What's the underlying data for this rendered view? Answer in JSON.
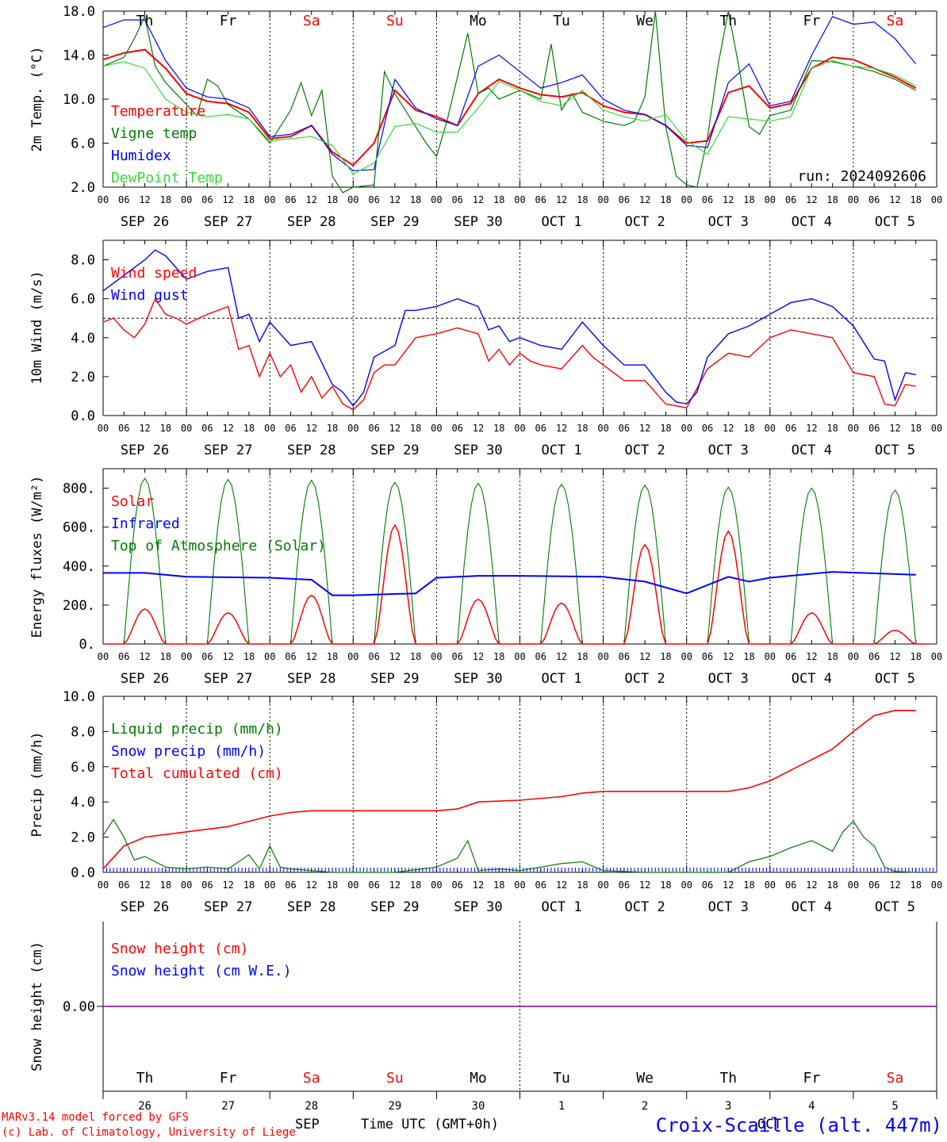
{
  "footer": {
    "credit1": "MARv3.14 model forced by GFS",
    "credit2": "(c) Lab. of Climatology, University of Liege",
    "month_label": "SEP",
    "month_label2": "OCT",
    "time_axis_label": "Time UTC (GMT+0h)",
    "site": "Croix-Scaille (alt. 447m)"
  },
  "colors": {
    "red": "#ff0000",
    "green": "#007a00",
    "blue": "#0000ff",
    "light_green": "#33dd33",
    "purple": "#800080",
    "weekend_red": "#ff0000"
  },
  "time_axis": {
    "hour_ticks": [
      "00",
      "06",
      "12",
      "18"
    ],
    "date_labels": [
      "SEP 26",
      "SEP 27",
      "SEP 28",
      "SEP 29",
      "SEP 30",
      "OCT 1",
      "OCT 2",
      "OCT 3",
      "OCT 4",
      "OCT 5"
    ],
    "day_abbr": [
      "Th",
      "Fr",
      "Sa",
      "Su",
      "Mo",
      "Tu",
      "We",
      "Th",
      "Fr",
      "Sa"
    ],
    "day_numbers": [
      "26",
      "27",
      "28",
      "29",
      "30",
      "1",
      "2",
      "3",
      "4",
      "5"
    ],
    "weekend_index": [
      2,
      3,
      9
    ]
  },
  "chart_data": [
    {
      "type": "line",
      "ylabel": "2m Temp. (°C)",
      "ylim": [
        2.0,
        18.0
      ],
      "yticks": [
        "2.0",
        "6.0",
        "10.0",
        "14.0",
        "18.0"
      ],
      "annotation": "run: 2024092606",
      "x_unit": "hours since 2024-09-26 00 UTC",
      "series": [
        {
          "name": "Temperature",
          "color": "#ff0000",
          "x": [
            0,
            6,
            12,
            18,
            24,
            30,
            36,
            42,
            48,
            54,
            60,
            66,
            72,
            78,
            84,
            90,
            96,
            102,
            108,
            114,
            120,
            126,
            132,
            138,
            144,
            150,
            156,
            162,
            168,
            174,
            180,
            186,
            192,
            198,
            204,
            210,
            216,
            222,
            228,
            234
          ],
          "values": [
            13.6,
            14.2,
            14.5,
            12.8,
            10.5,
            9.8,
            9.6,
            8.8,
            6.4,
            6.6,
            7.6,
            5.2,
            4.0,
            6.0,
            10.8,
            9.0,
            8.4,
            7.6,
            10.5,
            11.8,
            11.0,
            10.4,
            10.2,
            10.6,
            9.4,
            8.8,
            8.6,
            7.6,
            6.0,
            6.2,
            10.6,
            11.2,
            9.2,
            9.6,
            12.8,
            13.8,
            13.6,
            12.8,
            12.0,
            11.0
          ]
        },
        {
          "name": "Vigne temp",
          "color": "#007a00",
          "x": [
            0,
            6,
            9,
            12,
            15,
            18,
            24,
            27,
            30,
            33,
            36,
            42,
            48,
            54,
            57,
            60,
            63,
            66,
            69,
            72,
            78,
            81,
            84,
            90,
            93,
            96,
            99,
            102,
            105,
            108,
            111,
            114,
            120,
            126,
            129,
            132,
            135,
            138,
            144,
            150,
            153,
            156,
            159,
            162,
            165,
            168,
            171,
            174,
            177,
            180,
            183,
            186,
            189,
            192,
            198,
            204,
            210,
            216,
            222,
            228,
            234
          ],
          "values": [
            13.0,
            13.8,
            15.5,
            17.5,
            13.0,
            11.5,
            9.5,
            8.5,
            11.8,
            11.2,
            9.5,
            8.2,
            6.0,
            9.0,
            11.5,
            8.5,
            10.8,
            3.0,
            1.5,
            2.0,
            2.2,
            12.5,
            10.5,
            7.5,
            6.0,
            4.8,
            8.0,
            12.0,
            16.0,
            10.5,
            11.0,
            10.0,
            10.8,
            10.0,
            15.0,
            9.0,
            10.5,
            8.8,
            8.0,
            7.6,
            8.0,
            10.2,
            18.0,
            7.5,
            3.0,
            2.2,
            2.0,
            6.5,
            13.0,
            18.0,
            13.0,
            7.5,
            6.8,
            8.5,
            9.0,
            13.5,
            13.4,
            13.0,
            12.5,
            11.8,
            10.8
          ]
        },
        {
          "name": "Humidex",
          "color": "#0000ff",
          "x": [
            0,
            6,
            12,
            18,
            24,
            30,
            36,
            42,
            48,
            54,
            60,
            66,
            72,
            78,
            84,
            90,
            96,
            102,
            108,
            114,
            120,
            126,
            132,
            138,
            144,
            150,
            156,
            162,
            168,
            174,
            180,
            186,
            192,
            198,
            204,
            210,
            216,
            222,
            228,
            234
          ],
          "values": [
            16.5,
            17.2,
            17.2,
            13.5,
            11.0,
            10.2,
            10.0,
            9.2,
            6.6,
            6.8,
            7.6,
            5.0,
            3.5,
            3.6,
            11.8,
            9.2,
            8.2,
            7.6,
            13.0,
            14.0,
            12.5,
            11.0,
            11.5,
            12.2,
            10.0,
            9.0,
            8.6,
            7.6,
            5.8,
            5.6,
            11.5,
            13.2,
            9.4,
            9.8,
            14.0,
            17.5,
            16.8,
            17.0,
            15.5,
            13.2
          ]
        },
        {
          "name": "DewPoint Temp",
          "color": "#33dd33",
          "x": [
            0,
            6,
            12,
            18,
            24,
            30,
            36,
            42,
            48,
            54,
            60,
            66,
            72,
            78,
            84,
            90,
            96,
            102,
            108,
            114,
            120,
            126,
            132,
            138,
            144,
            150,
            156,
            162,
            168,
            174,
            180,
            186,
            192,
            198,
            204,
            210,
            216,
            222,
            228,
            234
          ],
          "values": [
            13.0,
            13.4,
            12.8,
            10.0,
            8.8,
            8.4,
            8.6,
            8.2,
            6.2,
            6.4,
            6.6,
            5.8,
            3.2,
            4.2,
            7.5,
            7.8,
            7.0,
            7.0,
            9.2,
            11.6,
            10.8,
            9.8,
            9.4,
            10.8,
            9.0,
            8.4,
            8.0,
            8.6,
            6.2,
            5.0,
            8.4,
            8.2,
            8.0,
            8.4,
            12.8,
            13.5,
            13.0,
            12.8,
            12.2,
            11.2
          ]
        }
      ]
    },
    {
      "type": "line",
      "ylabel": "10m Wind (m/s)",
      "ylim": [
        0.0,
        9.0
      ],
      "yticks": [
        "0.0",
        "2.0",
        "4.0",
        "6.0",
        "8.0"
      ],
      "reference_line": 5.0,
      "x_unit": "hours since 2024-09-26 00 UTC",
      "series": [
        {
          "name": "Wind speed",
          "color": "#ff0000",
          "x": [
            0,
            3,
            6,
            9,
            12,
            15,
            18,
            21,
            24,
            30,
            36,
            39,
            42,
            45,
            48,
            51,
            54,
            57,
            60,
            63,
            66,
            69,
            72,
            75,
            78,
            81,
            84,
            90,
            96,
            102,
            108,
            111,
            114,
            117,
            120,
            123,
            126,
            132,
            138,
            141,
            144,
            150,
            156,
            162,
            168,
            174,
            180,
            186,
            192,
            198,
            204,
            210,
            216,
            222,
            225,
            228,
            231,
            234
          ],
          "values": [
            4.8,
            5.0,
            4.4,
            4.0,
            4.7,
            6.0,
            5.2,
            5.0,
            4.7,
            5.2,
            5.6,
            3.4,
            3.6,
            2.0,
            3.2,
            2.0,
            2.6,
            1.2,
            2.0,
            0.9,
            1.5,
            0.6,
            0.3,
            0.8,
            2.2,
            2.6,
            2.6,
            4.0,
            4.2,
            4.5,
            4.2,
            2.8,
            3.4,
            2.6,
            3.2,
            2.8,
            2.6,
            2.4,
            3.6,
            3.0,
            2.6,
            1.8,
            1.8,
            0.6,
            0.4,
            2.4,
            3.2,
            3.0,
            4.0,
            4.4,
            4.2,
            4.0,
            2.2,
            2.0,
            0.6,
            0.5,
            1.6,
            1.5
          ]
        },
        {
          "name": "Wind gust",
          "color": "#0000ff",
          "x": [
            0,
            6,
            12,
            15,
            18,
            24,
            30,
            36,
            39,
            42,
            45,
            48,
            54,
            60,
            66,
            69,
            72,
            75,
            78,
            84,
            87,
            90,
            96,
            102,
            108,
            111,
            114,
            117,
            120,
            126,
            132,
            138,
            144,
            150,
            156,
            162,
            165,
            168,
            171,
            174,
            180,
            186,
            192,
            198,
            204,
            210,
            216,
            222,
            225,
            228,
            231,
            234
          ],
          "values": [
            6.4,
            7.2,
            8.0,
            8.5,
            8.2,
            7.0,
            7.4,
            7.6,
            5.0,
            5.2,
            3.8,
            4.8,
            3.6,
            3.8,
            1.6,
            1.2,
            0.5,
            1.2,
            3.0,
            3.6,
            5.4,
            5.4,
            5.6,
            6.0,
            5.6,
            4.4,
            4.6,
            3.8,
            4.0,
            3.6,
            3.4,
            4.8,
            3.6,
            2.6,
            2.6,
            1.2,
            0.7,
            0.6,
            1.2,
            3.0,
            4.2,
            4.6,
            5.2,
            5.8,
            6.0,
            5.6,
            4.6,
            2.9,
            2.8,
            0.8,
            2.2,
            2.1
          ]
        }
      ]
    },
    {
      "type": "line",
      "ylabel": "Energy fluxes (W/m²)",
      "ylim": [
        0,
        900
      ],
      "yticks": [
        "0.",
        "200.",
        "400.",
        "600.",
        "800."
      ],
      "x_unit": "hours since 2024-09-26 00 UTC",
      "diurnal": {
        "toa_peak": [
          850,
          845,
          840,
          830,
          825,
          820,
          815,
          805,
          800,
          790
        ],
        "solar_peak": [
          180,
          160,
          250,
          610,
          230,
          210,
          510,
          580,
          160,
          70
        ],
        "noon_hour": 12,
        "sunrise_hour": 6,
        "sunset_hour": 18
      },
      "series": [
        {
          "name": "Solar",
          "color": "#ff0000"
        },
        {
          "name": "Infrared",
          "color": "#0000ff",
          "x": [
            0,
            12,
            24,
            48,
            60,
            66,
            72,
            90,
            96,
            108,
            120,
            144,
            156,
            168,
            180,
            186,
            192,
            210,
            234
          ],
          "values": [
            365,
            365,
            345,
            340,
            330,
            250,
            250,
            260,
            340,
            350,
            350,
            345,
            320,
            260,
            345,
            320,
            340,
            370,
            355
          ]
        },
        {
          "name": "Top of Atmosphere (Solar)",
          "color": "#007a00"
        }
      ]
    },
    {
      "type": "line",
      "ylabel": "Precip (mm/h)",
      "ylim": [
        0.0,
        10.0
      ],
      "yticks": [
        "0.0",
        "2.0",
        "4.0",
        "6.0",
        "8.0",
        "10.0"
      ],
      "x_unit": "hours since 2024-09-26 00 UTC",
      "series": [
        {
          "name": "Liquid precip (mm/h)",
          "color": "#007a00",
          "x": [
            0,
            3,
            6,
            9,
            12,
            18,
            24,
            30,
            36,
            42,
            45,
            48,
            51,
            54,
            60,
            66,
            84,
            96,
            102,
            105,
            108,
            114,
            120,
            132,
            138,
            144,
            156,
            168,
            180,
            186,
            192,
            198,
            204,
            210,
            213,
            216,
            219,
            222,
            225,
            228,
            234
          ],
          "values": [
            2.1,
            3.0,
            2.0,
            0.7,
            0.9,
            0.3,
            0.2,
            0.3,
            0.2,
            1.0,
            0.2,
            1.5,
            0.3,
            0.2,
            0.1,
            0.0,
            0.0,
            0.3,
            0.8,
            1.8,
            0.1,
            0.2,
            0.1,
            0.5,
            0.6,
            0.1,
            0.0,
            0.0,
            0.0,
            0.6,
            0.9,
            1.4,
            1.8,
            1.2,
            2.3,
            2.9,
            2.0,
            1.5,
            0.3,
            0.05,
            0.0
          ]
        },
        {
          "name": "Snow precip (mm/h)",
          "color": "#0000ff",
          "x": [
            0,
            234
          ],
          "values": [
            0.0,
            0.0
          ]
        },
        {
          "name": "Total cumulated (cm)",
          "color": "#ff0000",
          "x": [
            0,
            6,
            12,
            24,
            36,
            42,
            48,
            54,
            60,
            72,
            96,
            102,
            108,
            120,
            132,
            138,
            144,
            168,
            180,
            186,
            192,
            198,
            204,
            210,
            216,
            222,
            228,
            234
          ],
          "values": [
            0.2,
            1.5,
            2.0,
            2.3,
            2.6,
            2.9,
            3.2,
            3.4,
            3.5,
            3.5,
            3.5,
            3.6,
            4.0,
            4.1,
            4.3,
            4.5,
            4.6,
            4.6,
            4.6,
            4.8,
            5.2,
            5.8,
            6.4,
            7.0,
            8.0,
            8.9,
            9.2,
            9.2
          ]
        }
      ]
    },
    {
      "type": "line",
      "ylabel": "Snow height (cm)",
      "yticks": [
        "0.00"
      ],
      "x_unit": "hours since 2024-09-26 00 UTC",
      "series": [
        {
          "name": "Snow height (cm)",
          "color": "#ff0000",
          "x": [
            0,
            234
          ],
          "values": [
            0.0,
            0.0
          ]
        },
        {
          "name": "Snow height (cm W.E.)",
          "color": "#0000ff",
          "x": [
            0,
            234
          ],
          "values": [
            0.0,
            0.0
          ]
        }
      ]
    }
  ]
}
